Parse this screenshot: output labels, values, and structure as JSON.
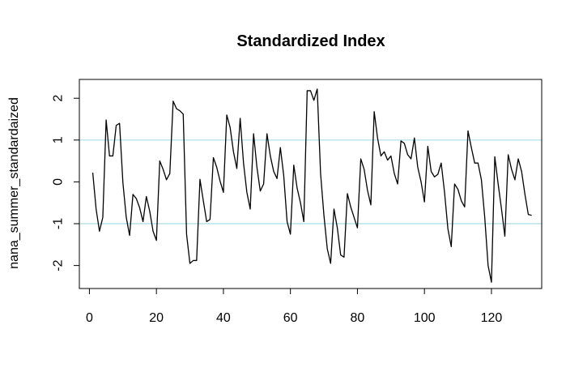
{
  "chart_data": {
    "type": "line",
    "title": "Standardized Index",
    "xlabel": "",
    "ylabel": "nana_summer_standardaized",
    "xlim": [
      -3,
      135
    ],
    "ylim": [
      -2.55,
      2.45
    ],
    "x_ticks": [
      0,
      20,
      40,
      60,
      80,
      100,
      120
    ],
    "y_ticks": [
      -2,
      -1,
      0,
      1,
      2
    ],
    "x_tick_labels": [
      "0",
      "20",
      "40",
      "60",
      "80",
      "100",
      "120"
    ],
    "y_tick_labels": [
      "-2",
      "-1",
      "0",
      "1",
      "2"
    ],
    "grid": false,
    "reference_lines": [
      1,
      -1
    ],
    "reference_line_color": "#a8dce6",
    "series_color": "#000000",
    "series": [
      {
        "x": [
          1,
          2,
          3,
          4,
          5,
          6,
          7,
          8,
          9,
          10,
          11,
          12,
          13,
          14,
          15,
          16,
          17,
          18,
          19,
          20,
          21,
          22,
          23,
          24,
          25,
          26,
          27,
          28,
          29,
          30,
          31,
          32,
          33,
          34,
          35,
          36,
          37,
          38,
          39,
          40,
          41,
          42,
          43,
          44,
          45,
          46,
          47,
          48,
          49,
          50,
          51,
          52,
          53,
          54,
          55,
          56,
          57,
          58,
          59,
          60,
          61,
          62,
          63,
          64,
          65,
          66,
          67,
          68,
          69,
          70,
          71,
          72,
          73,
          74,
          75,
          76,
          77,
          78,
          79,
          80,
          81,
          82,
          83,
          84,
          85,
          86,
          87,
          88,
          89,
          90,
          91,
          92,
          93,
          94,
          95,
          96,
          97,
          98,
          99,
          100,
          101,
          102,
          103,
          104,
          105,
          106,
          107,
          108,
          109,
          110,
          111,
          112,
          113,
          114,
          115,
          116,
          117,
          118,
          119,
          120,
          121,
          122,
          123,
          124,
          125,
          126,
          127,
          128,
          129,
          130,
          131,
          132
        ],
        "values": [
          0.22,
          -0.65,
          -1.18,
          -0.85,
          1.48,
          0.62,
          0.62,
          1.35,
          1.4,
          -0.02,
          -0.85,
          -1.28,
          -0.3,
          -0.4,
          -0.62,
          -0.95,
          -0.35,
          -0.7,
          -1.18,
          -1.4,
          0.5,
          0.3,
          0.05,
          0.2,
          1.93,
          1.75,
          1.7,
          1.62,
          -1.25,
          -1.95,
          -1.88,
          -1.88,
          0.06,
          -0.45,
          -0.95,
          -0.9,
          0.58,
          0.35,
          0.02,
          -0.25,
          1.6,
          1.3,
          0.72,
          0.32,
          1.52,
          0.45,
          -0.25,
          -0.65,
          1.15,
          0.35,
          -0.22,
          -0.05,
          1.15,
          0.62,
          0.25,
          0.08,
          0.82,
          0.15,
          -0.95,
          -1.25,
          0.4,
          -0.15,
          -0.5,
          -0.95,
          2.18,
          2.18,
          1.95,
          2.22,
          0.2,
          -0.8,
          -1.6,
          -1.95,
          -0.65,
          -1.1,
          -1.75,
          -1.8,
          -0.28,
          -0.6,
          -0.85,
          -1.1,
          0.55,
          0.3,
          -0.2,
          -0.55,
          1.68,
          1.05,
          0.62,
          0.72,
          0.52,
          0.62,
          0.2,
          -0.05,
          0.98,
          0.92,
          0.65,
          0.55,
          1.05,
          0.35,
          0.0,
          -0.48,
          0.85,
          0.25,
          0.12,
          0.18,
          0.45,
          -0.25,
          -1.12,
          -1.55,
          -0.05,
          -0.18,
          -0.45,
          -0.6,
          1.22,
          0.82,
          0.45,
          0.45,
          0.05,
          -0.85,
          -2.0,
          -2.4,
          0.6,
          -0.05,
          -0.65,
          -1.3,
          0.65,
          0.3,
          0.05,
          0.55,
          0.25,
          -0.3,
          -0.78,
          -0.8
        ]
      }
    ]
  }
}
